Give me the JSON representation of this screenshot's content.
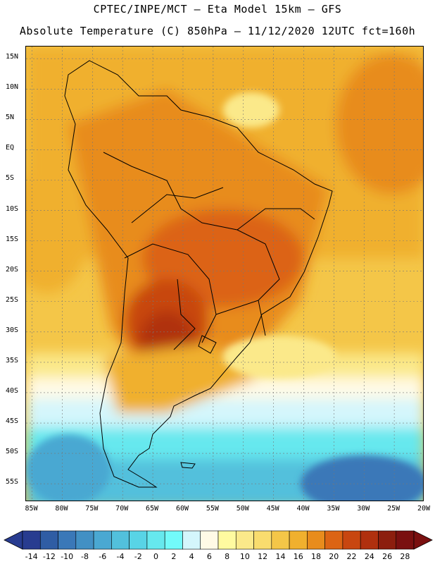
{
  "header": {
    "line1": "CPTEC/INPE/MCT –  Eta Model 15km – GFS",
    "line2": "Absolute Temperature (C) 850hPa – 11/12/2020 12UTC fct=160h"
  },
  "map": {
    "lat_labels": [
      "15N",
      "10N",
      "5N",
      "EQ",
      "5S",
      "10S",
      "15S",
      "20S",
      "25S",
      "30S",
      "35S",
      "40S",
      "45S",
      "50S",
      "55S"
    ],
    "lon_labels": [
      "85W",
      "80W",
      "75W",
      "70W",
      "65W",
      "60W",
      "55W",
      "50W",
      "45W",
      "40W",
      "35W",
      "30W",
      "25W",
      "20W"
    ],
    "lat_range": [
      -58,
      17
    ],
    "lon_range": [
      -86,
      -20
    ],
    "grid": true
  },
  "colorbar": {
    "labels": [
      "-14",
      "-12",
      "-10",
      "-8",
      "-6",
      "-4",
      "-2",
      "0",
      "2",
      "4",
      "6",
      "8",
      "10",
      "12",
      "14",
      "16",
      "18",
      "20",
      "22",
      "24",
      "26",
      "28"
    ],
    "colors": [
      "#283c90",
      "#2f5da4",
      "#3a78b8",
      "#4290c4",
      "#4aa8d2",
      "#52c0dc",
      "#58d4e6",
      "#66e8ee",
      "#72fafa",
      "#d4f6fc",
      "#fffae6",
      "#fffaa0",
      "#fbe98a",
      "#f9dc6e",
      "#f4c648",
      "#f0b02e",
      "#e88c1c",
      "#dc6414",
      "#c84610",
      "#b0300e",
      "#8c1e0e",
      "#7a1010"
    ]
  }
}
